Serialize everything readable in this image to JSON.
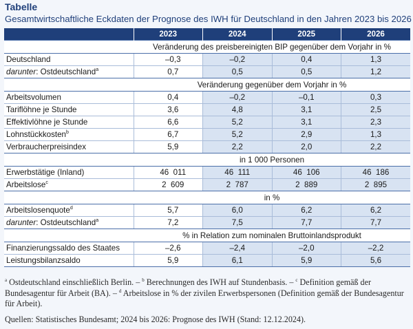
{
  "title": "Tabelle",
  "subtitle": "Gesamtwirtschaftliche Eckdaten der Prognose des IWH für Deutschland in den Jahren 2023 bis 2026",
  "years": [
    "2023",
    "2024",
    "2025",
    "2026"
  ],
  "sections": [
    {
      "heading": "Veränderung des preisbereinigten BIP gegenüber dem Vorjahr in %",
      "rows": [
        {
          "label": "Deutschland",
          "italic_prefix": "",
          "sup": "",
          "values": [
            "–0,3",
            "–0,2",
            "0,4",
            "1,3"
          ]
        },
        {
          "label": ": Ostdeutschland",
          "italic_prefix": "darunter",
          "sup": "a",
          "values": [
            "0,7",
            "0,5",
            "0,5",
            "1,2"
          ]
        }
      ]
    },
    {
      "heading": "Veränderung gegenüber dem Vorjahr in %",
      "rows": [
        {
          "label": "Arbeitsvolumen",
          "italic_prefix": "",
          "sup": "",
          "values": [
            "0,4",
            "–0,2",
            "–0,1",
            "0,3"
          ]
        },
        {
          "label": "Tariflöhne je Stunde",
          "italic_prefix": "",
          "sup": "",
          "values": [
            "3,6",
            "4,8",
            "3,1",
            "2,5"
          ]
        },
        {
          "label": "Effektivlöhne je Stunde",
          "italic_prefix": "",
          "sup": "",
          "values": [
            "6,6",
            "5,2",
            "3,1",
            "2,3"
          ]
        },
        {
          "label": "Lohnstückkosten",
          "italic_prefix": "",
          "sup": "b",
          "values": [
            "6,7",
            "5,2",
            "2,9",
            "1,3"
          ]
        },
        {
          "label": "Verbraucherpreisindex",
          "italic_prefix": "",
          "sup": "",
          "values": [
            "5,9",
            "2,2",
            "2,0",
            "2,2"
          ]
        }
      ]
    },
    {
      "heading": "in 1  000 Personen",
      "rows": [
        {
          "label": "Erwerbstätige (Inland)",
          "italic_prefix": "",
          "sup": "",
          "values": [
            "46  011",
            "46  111",
            "46  106",
            "46  186"
          ]
        },
        {
          "label": "Arbeitslose",
          "italic_prefix": "",
          "sup": "c",
          "values": [
            "2  609",
            "2  787",
            "2  889",
            "2  895"
          ]
        }
      ]
    },
    {
      "heading": "in %",
      "rows": [
        {
          "label": "Arbeitslosenquote",
          "italic_prefix": "",
          "sup": "d",
          "values": [
            "5,7",
            "6,0",
            "6,2",
            "6,2"
          ]
        },
        {
          "label": ": Ostdeutschland",
          "italic_prefix": "darunter",
          "sup": "a",
          "values": [
            "7,2",
            "7,5",
            "7,7",
            "7,7"
          ]
        }
      ]
    },
    {
      "heading": "% in Relation zum nominalen Bruttoinlandsprodukt",
      "rows": [
        {
          "label": "Finanzierungssaldo des Staates",
          "italic_prefix": "",
          "sup": "",
          "values": [
            "–2,6",
            "–2,4",
            "–2,0",
            "–2,2"
          ]
        },
        {
          "label": "Leistungsbilanzsaldo",
          "italic_prefix": "",
          "sup": "",
          "values": [
            "5,9",
            "6,1",
            "5,9",
            "5,6"
          ]
        }
      ]
    }
  ],
  "notes": "a Ostdeutschland einschließlich Berlin. – b Berechnungen des IWH auf Stundenbasis. – c Definition gemäß der Bundesagentur für Arbeit (BA). – d Arbeitslose in % der zivilen Erwerbspersonen (Definition gemäß der Bundesagentur für Arbeit).",
  "sources": "Quellen: Statistisches Bundesamt; 2024 bis 2026: Prognose des IWH (Stand: 12.12.2024)."
}
